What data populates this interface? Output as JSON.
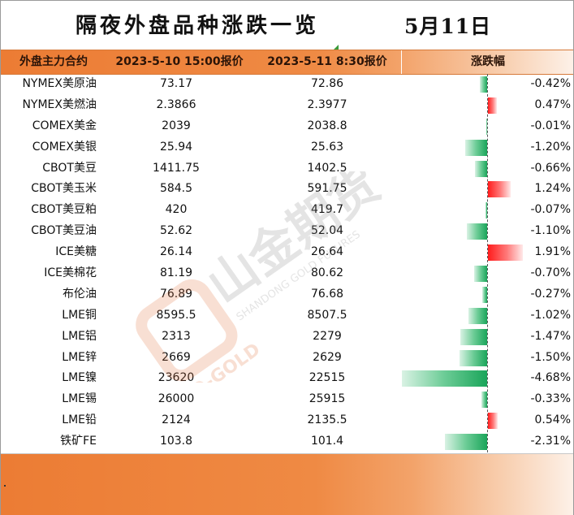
{
  "title": "隔夜外盘品种涨跌一览",
  "date": "5月11日",
  "headers": {
    "name": "外盘主力合约",
    "price1": "2023-5-10 15:00报价",
    "price2": "2023-5-11 8:30报价",
    "change": "涨跌幅"
  },
  "watermark": {
    "cn": "山金期货",
    "en": "SHANDONG GOLD FUTURES",
    "en_side": "ID-GOLD"
  },
  "colors": {
    "header_orange": "#ec7c34",
    "up_red": "#ff1c1c",
    "down_green": "#1aa55a"
  },
  "rows": [
    {
      "name": "NYMEX美原油",
      "p1": "73.17",
      "p2": "72.86",
      "pct": "-0.42%",
      "v": -0.42
    },
    {
      "name": "NYMEX美燃油",
      "p1": "2.3866",
      "p2": "2.3977",
      "pct": "0.47%",
      "v": 0.47
    },
    {
      "name": "COMEX美金",
      "p1": "2039",
      "p2": "2038.8",
      "pct": "-0.01%",
      "v": -0.01
    },
    {
      "name": "COMEX美银",
      "p1": "25.94",
      "p2": "25.63",
      "pct": "-1.20%",
      "v": -1.2
    },
    {
      "name": "CBOT美豆",
      "p1": "1411.75",
      "p2": "1402.5",
      "pct": "-0.66%",
      "v": -0.66
    },
    {
      "name": "CBOT美玉米",
      "p1": "584.5",
      "p2": "591.75",
      "pct": "1.24%",
      "v": 1.24
    },
    {
      "name": "CBOT美豆粕",
      "p1": "420",
      "p2": "419.7",
      "pct": "-0.07%",
      "v": -0.07
    },
    {
      "name": "CBOT美豆油",
      "p1": "52.62",
      "p2": "52.04",
      "pct": "-1.10%",
      "v": -1.1
    },
    {
      "name": "ICE美糖",
      "p1": "26.14",
      "p2": "26.64",
      "pct": "1.91%",
      "v": 1.91
    },
    {
      "name": "ICE美棉花",
      "p1": "81.19",
      "p2": "80.62",
      "pct": "-0.70%",
      "v": -0.7
    },
    {
      "name": "布伦油",
      "p1": "76.89",
      "p2": "76.68",
      "pct": "-0.27%",
      "v": -0.27
    },
    {
      "name": "LME铜",
      "p1": "8595.5",
      "p2": "8507.5",
      "pct": "-1.02%",
      "v": -1.02
    },
    {
      "name": "LME铝",
      "p1": "2313",
      "p2": "2279",
      "pct": "-1.47%",
      "v": -1.47
    },
    {
      "name": "LME锌",
      "p1": "2669",
      "p2": "2629",
      "pct": "-1.50%",
      "v": -1.5
    },
    {
      "name": "LME镍",
      "p1": "23620",
      "p2": "22515",
      "pct": "-4.68%",
      "v": -4.68
    },
    {
      "name": "LME锡",
      "p1": "26000",
      "p2": "25915",
      "pct": "-0.33%",
      "v": -0.33
    },
    {
      "name": "LME铅",
      "p1": "2124",
      "p2": "2135.5",
      "pct": "0.54%",
      "v": 0.54
    },
    {
      "name": "铁矿FE",
      "p1": "103.8",
      "p2": "101.4",
      "pct": "-2.31%",
      "v": -2.31
    }
  ]
}
